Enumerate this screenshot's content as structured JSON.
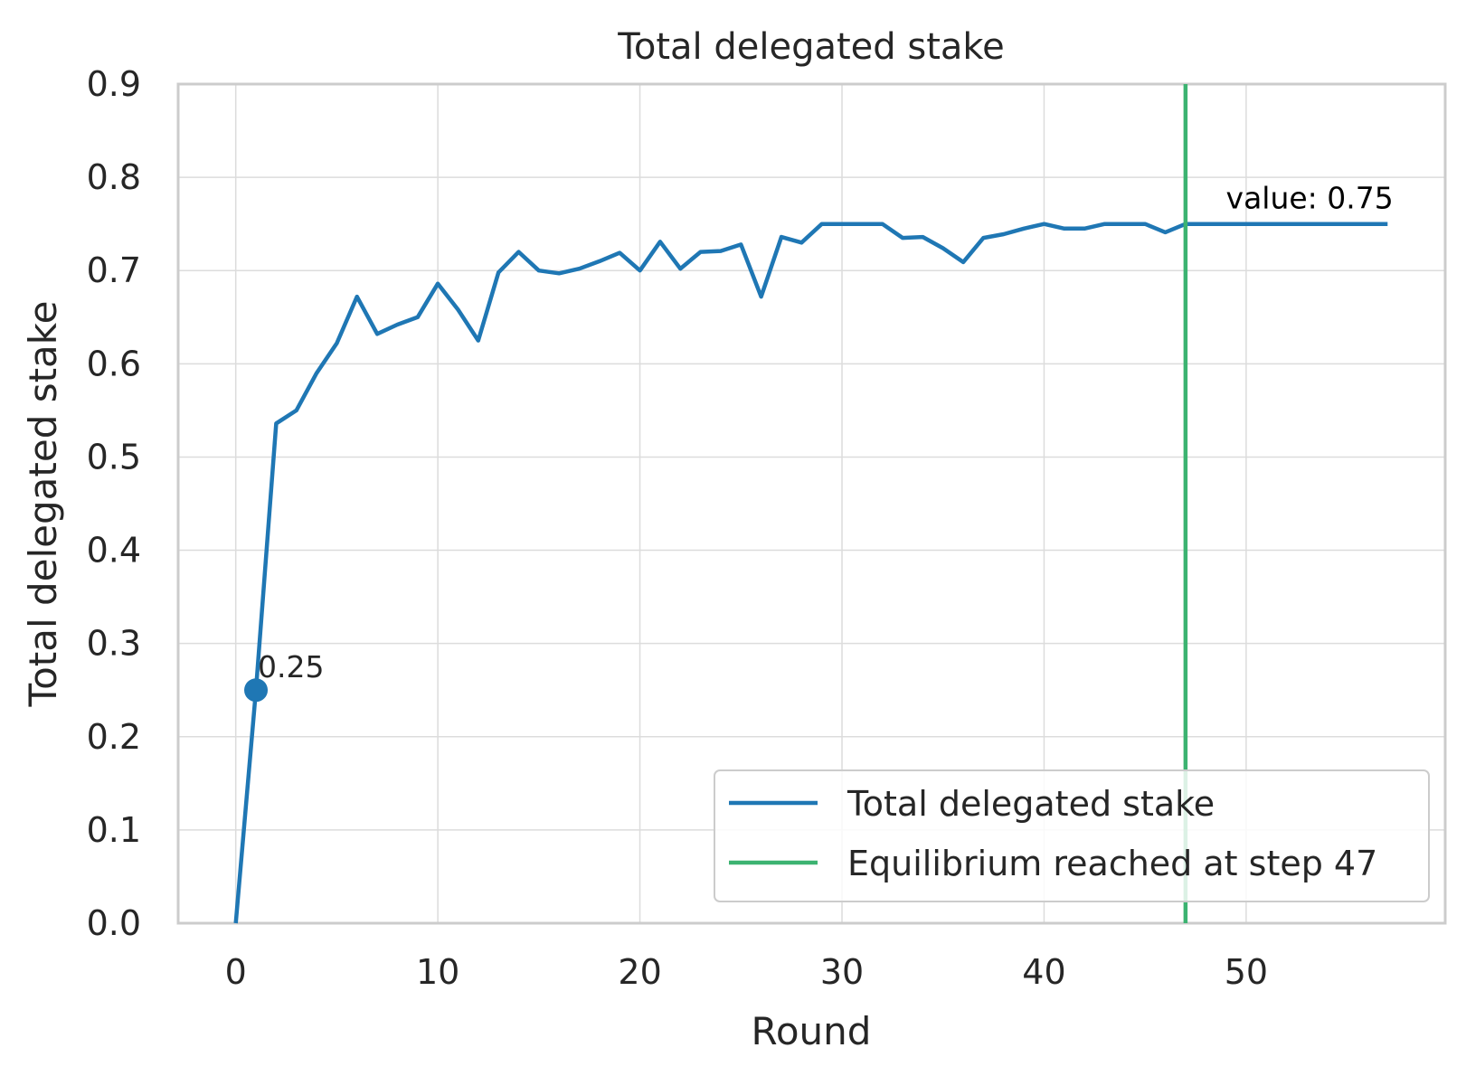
{
  "chart_data": {
    "type": "line",
    "title": "Total delegated stake",
    "xlabel": "Round",
    "ylabel": "Total delegated stake",
    "xlim": [
      -2.85,
      59.85
    ],
    "ylim": [
      0.0,
      0.9
    ],
    "xticks": [
      0,
      10,
      20,
      30,
      40,
      50
    ],
    "yticks": [
      "0.0",
      "0.1",
      "0.2",
      "0.3",
      "0.4",
      "0.5",
      "0.6",
      "0.7",
      "0.8",
      "0.9"
    ],
    "grid": true,
    "legend_position": "lower-right",
    "series": [
      {
        "name": "Total delegated stake",
        "color": "#1f77b4",
        "x": [
          0,
          1,
          2,
          3,
          4,
          5,
          6,
          7,
          8,
          9,
          10,
          11,
          12,
          13,
          14,
          15,
          16,
          17,
          18,
          19,
          20,
          21,
          22,
          23,
          24,
          25,
          26,
          27,
          28,
          29,
          30,
          31,
          32,
          33,
          34,
          35,
          36,
          37,
          38,
          39,
          40,
          41,
          42,
          43,
          44,
          45,
          46,
          47,
          48,
          49,
          50,
          51,
          52,
          53,
          54,
          55,
          56,
          57
        ],
        "values": [
          0.0,
          0.25,
          0.536,
          0.55,
          0.59,
          0.622,
          0.672,
          0.632,
          0.642,
          0.65,
          0.686,
          0.658,
          0.625,
          0.698,
          0.72,
          0.7,
          0.697,
          0.702,
          0.71,
          0.719,
          0.7,
          0.731,
          0.702,
          0.72,
          0.721,
          0.728,
          0.672,
          0.736,
          0.73,
          0.75,
          0.75,
          0.75,
          0.75,
          0.735,
          0.736,
          0.724,
          0.709,
          0.735,
          0.739,
          0.745,
          0.75,
          0.745,
          0.745,
          0.75,
          0.75,
          0.75,
          0.741,
          0.75,
          0.75,
          0.75,
          0.75,
          0.75,
          0.75,
          0.75,
          0.75,
          0.75,
          0.75,
          0.75
        ]
      },
      {
        "name": "Equilibrium reached at step 47",
        "color": "#3cb371",
        "type": "vline",
        "x": 47
      }
    ],
    "highlight_point": {
      "x": 1,
      "y": 0.25,
      "label": "0.25"
    },
    "annotation": {
      "text": "value: 0.75",
      "x": 49,
      "y": 0.78
    }
  }
}
